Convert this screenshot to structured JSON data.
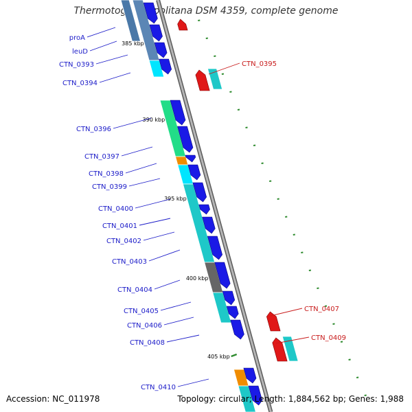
{
  "title": "Thermotoga neapolitana DSM 4359, complete genome",
  "footer": {
    "accession": "Accession: NC_011978",
    "summary": "Topology: circular; Length: 1,884,562 bp; Genes: 1,988"
  },
  "colors": {
    "forward_cds": "#1a1ae6",
    "reverse_cds": "#e01818",
    "forward_label": "#1a1ac8",
    "reverse_label": "#c81a1a",
    "backbone": "#8c8c8c",
    "tick": "#2e8b2e",
    "cog_blue": "#5b86b5",
    "cog_cyan": "#1ec8c8",
    "cog_bright_cyan": "#00e5ff",
    "cog_green": "#22dd88",
    "cog_orange": "#f08c00",
    "cog_gray": "#666666"
  },
  "ticks": [
    {
      "label": "385 kbp"
    },
    {
      "label": "390 kbp"
    },
    {
      "label": "395 kbp"
    },
    {
      "label": "400 kbp"
    },
    {
      "label": "405 kbp"
    }
  ],
  "forward_genes": [
    {
      "label": "proA",
      "cog": "cog_blue"
    },
    {
      "label": "leuD",
      "cog": "cog_blue"
    },
    {
      "label": "CTN_0393",
      "cog": "cog_blue"
    },
    {
      "label": "CTN_0394",
      "cog": "cog_bright_cyan"
    },
    {
      "label": "CTN_0396",
      "cog": "cog_green"
    },
    {
      "label": "CTN_0397",
      "cog": "cog_green"
    },
    {
      "label": "CTN_0398",
      "cog": "cog_orange"
    },
    {
      "label": "CTN_0399",
      "cog": "cog_bright_cyan"
    },
    {
      "label": "CTN_0400",
      "cog": "cog_cyan"
    },
    {
      "label": "CTN_0401",
      "cog": "cog_cyan"
    },
    {
      "label": "CTN_0402",
      "cog": "cog_cyan"
    },
    {
      "label": "CTN_0403",
      "cog": "cog_cyan"
    },
    {
      "label": "CTN_0404",
      "cog": "cog_gray"
    },
    {
      "label": "CTN_0405",
      "cog": "cog_cyan"
    },
    {
      "label": "CTN_0406",
      "cog": "cog_cyan"
    },
    {
      "label": "CTN_0408",
      "cog": "none"
    },
    {
      "label": "CTN_0410",
      "cog": "cog_orange"
    }
  ],
  "reverse_genes": [
    {
      "label": "CTN_0395",
      "cog": "cog_cyan"
    },
    {
      "label": "CTN_0407",
      "cog": "none"
    },
    {
      "label": "CTN_0409",
      "cog": "cog_cyan"
    }
  ]
}
